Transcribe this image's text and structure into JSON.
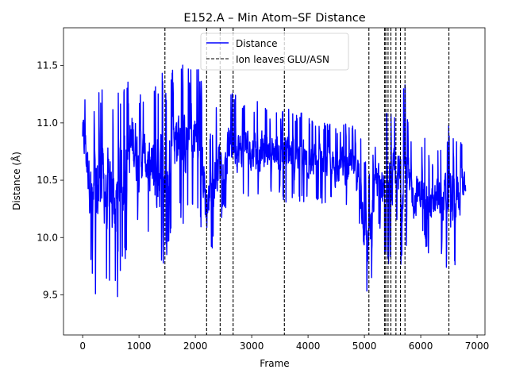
{
  "chart_data": {
    "type": "line",
    "title": "E152.A – Min Atom–SF Distance",
    "xlabel": "Frame",
    "ylabel": "Distance (Å)",
    "xlim": [
      -340,
      7140
    ],
    "ylim": [
      9.15,
      11.83
    ],
    "xticks": [
      0,
      1000,
      2000,
      3000,
      4000,
      5000,
      6000,
      7000
    ],
    "yticks": [
      9.5,
      10.0,
      10.5,
      11.0,
      11.5
    ],
    "ytick_labels": [
      "9.5",
      "10.0",
      "10.5",
      "11.0",
      "11.5"
    ],
    "legend": {
      "placement": "top-center",
      "entries": [
        {
          "label": "Distance",
          "style": "solid",
          "color": "#0000ff"
        },
        {
          "label": "Ion leaves GLU/ASN",
          "style": "dashed",
          "color": "#000000"
        }
      ]
    },
    "series": [
      {
        "name": "Distance",
        "color": "#0000ff",
        "envelope": {
          "x": [
            0,
            100,
            200,
            300,
            400,
            500,
            600,
            700,
            800,
            900,
            1000,
            1100,
            1200,
            1300,
            1400,
            1500,
            1600,
            1700,
            1800,
            1900,
            2000,
            2100,
            2200,
            2300,
            2400,
            2500,
            2600,
            2700,
            2800,
            2900,
            3000,
            3100,
            3200,
            3300,
            3400,
            3500,
            3600,
            3700,
            3800,
            3900,
            4000,
            4100,
            4200,
            4300,
            4400,
            4500,
            4600,
            4700,
            4800,
            4900,
            5000,
            5100,
            5200,
            5300,
            5400,
            5500,
            5600,
            5700,
            5800,
            5900,
            6000,
            6100,
            6200,
            6300,
            6400,
            6500,
            6600,
            6700,
            6800
          ],
          "low": [
            10.55,
            10.0,
            9.4,
            9.55,
            9.6,
            9.45,
            9.4,
            9.65,
            9.9,
            10.1,
            10.1,
            10.2,
            9.9,
            9.6,
            9.7,
            9.8,
            10.2,
            10.2,
            10.1,
            10.2,
            10.2,
            10.0,
            9.6,
            9.9,
            10.1,
            10.2,
            10.3,
            10.3,
            10.3,
            10.4,
            10.3,
            10.3,
            10.3,
            10.4,
            10.3,
            10.3,
            10.3,
            10.3,
            10.3,
            10.3,
            10.3,
            10.3,
            10.3,
            10.3,
            10.3,
            10.2,
            10.3,
            10.2,
            10.2,
            10.1,
            9.5,
            9.3,
            10.1,
            10.0,
            9.7,
            9.8,
            9.7,
            9.8,
            9.9,
            9.9,
            10.0,
            9.9,
            9.8,
            9.8,
            9.7,
            9.6,
            9.7,
            9.9,
            10.2
          ],
          "high": [
            11.3,
            11.2,
            11.1,
            11.4,
            11.2,
            11.3,
            11.2,
            11.4,
            11.5,
            11.6,
            11.3,
            11.2,
            11.3,
            11.4,
            11.5,
            11.3,
            11.5,
            11.6,
            11.5,
            11.5,
            11.6,
            11.5,
            10.9,
            11.0,
            11.2,
            11.2,
            11.3,
            11.3,
            11.2,
            11.2,
            11.2,
            11.2,
            11.2,
            11.1,
            11.2,
            11.1,
            11.2,
            11.1,
            11.1,
            11.1,
            11.1,
            11.0,
            11.0,
            11.0,
            11.0,
            11.0,
            11.0,
            11.0,
            11.0,
            11.0,
            10.7,
            10.6,
            10.9,
            11.0,
            11.1,
            11.1,
            11.2,
            11.5,
            10.9,
            10.8,
            10.8,
            10.9,
            10.7,
            10.8,
            10.9,
            11.0,
            10.9,
            10.9,
            10.8
          ]
        }
      }
    ],
    "vlines": [
      1460,
      2200,
      2440,
      2670,
      3580,
      5080,
      5360,
      5380,
      5420,
      5470,
      5560,
      5640,
      5720,
      6500
    ]
  }
}
